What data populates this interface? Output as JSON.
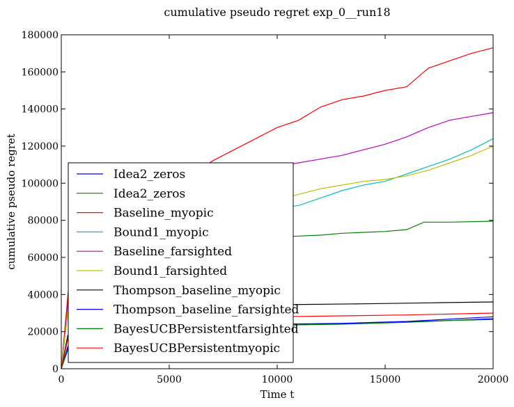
{
  "chart_data": {
    "type": "line",
    "title": "cumulative pseudo regret exp_0__run18",
    "xlabel": "Time t",
    "ylabel": "cumulative pseudo regret",
    "xlim": [
      0,
      20000
    ],
    "ylim": [
      0,
      180000
    ],
    "x_ticks": [
      "0",
      "5000",
      "10000",
      "15000",
      "20000"
    ],
    "y_ticks": [
      "0",
      "20000",
      "40000",
      "60000",
      "80000",
      "100000",
      "120000",
      "140000",
      "160000",
      "180000"
    ],
    "grid": false,
    "legend_position": "lower-left",
    "series": [
      {
        "name": "Idea2_zeros",
        "color": "#0000ff",
        "points": [
          [
            0,
            0
          ],
          [
            400,
            14000
          ],
          [
            1500,
            17000
          ],
          [
            3000,
            19000
          ],
          [
            6000,
            21000
          ],
          [
            9000,
            23000
          ],
          [
            12000,
            24000
          ],
          [
            15000,
            25000
          ],
          [
            18000,
            26000
          ],
          [
            20000,
            27000
          ]
        ]
      },
      {
        "name": "Idea2_zeros",
        "color": "#008000",
        "points": [
          [
            0,
            0
          ],
          [
            400,
            42000
          ],
          [
            1000,
            47000
          ],
          [
            2000,
            52000
          ],
          [
            3000,
            57000
          ],
          [
            4000,
            60000
          ],
          [
            5000,
            63000
          ],
          [
            6000,
            65000
          ],
          [
            7000,
            67000
          ],
          [
            8000,
            69000
          ],
          [
            9000,
            70000
          ],
          [
            10000,
            71000
          ],
          [
            11000,
            71500
          ],
          [
            12000,
            72000
          ],
          [
            13000,
            73000
          ],
          [
            14000,
            73500
          ],
          [
            15000,
            74000
          ],
          [
            16000,
            75000
          ],
          [
            16800,
            79000
          ],
          [
            18000,
            79000
          ],
          [
            20000,
            79500
          ]
        ]
      },
      {
        "name": "Baseline_myopic",
        "color": "#ff0000",
        "points": [
          [
            0,
            0
          ],
          [
            400,
            52000
          ],
          [
            1000,
            60000
          ],
          [
            2000,
            68000
          ],
          [
            3000,
            78000
          ],
          [
            4000,
            88000
          ],
          [
            5000,
            98000
          ],
          [
            6000,
            104000
          ],
          [
            7000,
            112000
          ],
          [
            8000,
            118000
          ],
          [
            9000,
            124000
          ],
          [
            10000,
            130000
          ],
          [
            11000,
            134000
          ],
          [
            12000,
            141000
          ],
          [
            13000,
            145000
          ],
          [
            14000,
            147000
          ],
          [
            15000,
            150000
          ],
          [
            16000,
            152000
          ],
          [
            17000,
            162000
          ],
          [
            18000,
            166000
          ],
          [
            19000,
            170000
          ],
          [
            20000,
            173000
          ]
        ]
      },
      {
        "name": "Bound1_myopic",
        "color": "#00bfbf",
        "points": [
          [
            0,
            0
          ],
          [
            400,
            40000
          ],
          [
            1500,
            52000
          ],
          [
            3000,
            62000
          ],
          [
            5000,
            72000
          ],
          [
            7000,
            80000
          ],
          [
            9000,
            85000
          ],
          [
            11000,
            88000
          ],
          [
            12000,
            92000
          ],
          [
            13000,
            96000
          ],
          [
            14000,
            99000
          ],
          [
            15000,
            101000
          ],
          [
            16000,
            105000
          ],
          [
            17000,
            109000
          ],
          [
            18000,
            113000
          ],
          [
            19000,
            118000
          ],
          [
            20000,
            124000
          ]
        ]
      },
      {
        "name": "Baseline_farsighted",
        "color": "#bf00bf",
        "points": [
          [
            0,
            0
          ],
          [
            400,
            46000
          ],
          [
            1500,
            58000
          ],
          [
            3000,
            70000
          ],
          [
            5000,
            85000
          ],
          [
            7000,
            96000
          ],
          [
            9000,
            104000
          ],
          [
            10000,
            109000
          ],
          [
            11000,
            111000
          ],
          [
            12000,
            113000
          ],
          [
            13000,
            115000
          ],
          [
            14000,
            118000
          ],
          [
            15000,
            121000
          ],
          [
            16000,
            125000
          ],
          [
            17000,
            130000
          ],
          [
            18000,
            134000
          ],
          [
            19000,
            136000
          ],
          [
            20000,
            138000
          ]
        ]
      },
      {
        "name": "Bound1_farsighted",
        "color": "#bfbf00",
        "points": [
          [
            0,
            0
          ],
          [
            400,
            42000
          ],
          [
            1500,
            54000
          ],
          [
            3000,
            64000
          ],
          [
            5000,
            75000
          ],
          [
            7000,
            83000
          ],
          [
            9000,
            88000
          ],
          [
            10000,
            91000
          ],
          [
            11000,
            94000
          ],
          [
            12000,
            97000
          ],
          [
            13000,
            99000
          ],
          [
            14000,
            101000
          ],
          [
            15000,
            102000
          ],
          [
            16000,
            104000
          ],
          [
            17000,
            107000
          ],
          [
            18000,
            111000
          ],
          [
            19000,
            115000
          ],
          [
            20000,
            120000
          ]
        ]
      },
      {
        "name": "Thompson_baseline_myopic",
        "color": "#000000",
        "points": [
          [
            0,
            0
          ],
          [
            300,
            18000
          ],
          [
            1000,
            24000
          ],
          [
            2000,
            28000
          ],
          [
            4000,
            31000
          ],
          [
            6000,
            33000
          ],
          [
            8000,
            34000
          ],
          [
            10000,
            34500
          ],
          [
            14000,
            35000
          ],
          [
            17000,
            35500
          ],
          [
            20000,
            36000
          ]
        ]
      },
      {
        "name": "Thompson_baseline_farsighted",
        "color": "#0000ff",
        "points": [
          [
            0,
            0
          ],
          [
            300,
            12000
          ],
          [
            1000,
            16000
          ],
          [
            2000,
            19000
          ],
          [
            4000,
            21000
          ],
          [
            6000,
            22000
          ],
          [
            8000,
            23000
          ],
          [
            10000,
            24000
          ],
          [
            13000,
            24500
          ],
          [
            16000,
            25500
          ],
          [
            20000,
            28000
          ]
        ]
      },
      {
        "name": "BayesUCBPersistentfarsighted",
        "color": "#008000",
        "points": [
          [
            0,
            0
          ],
          [
            300,
            10000
          ],
          [
            1000,
            15000
          ],
          [
            2000,
            18000
          ],
          [
            4000,
            20000
          ],
          [
            6000,
            22000
          ],
          [
            8000,
            23000
          ],
          [
            10000,
            23500
          ],
          [
            13000,
            24000
          ],
          [
            16000,
            25000
          ],
          [
            18000,
            26000
          ],
          [
            20000,
            26500
          ]
        ]
      },
      {
        "name": "BayesUCBPersistentmyopic",
        "color": "#ff0000",
        "points": [
          [
            0,
            0
          ],
          [
            300,
            16000
          ],
          [
            1000,
            20000
          ],
          [
            2000,
            23000
          ],
          [
            4000,
            25000
          ],
          [
            6000,
            26000
          ],
          [
            8000,
            27000
          ],
          [
            10000,
            28000
          ],
          [
            13000,
            28500
          ],
          [
            16000,
            29000
          ],
          [
            20000,
            30000
          ]
        ]
      }
    ]
  }
}
